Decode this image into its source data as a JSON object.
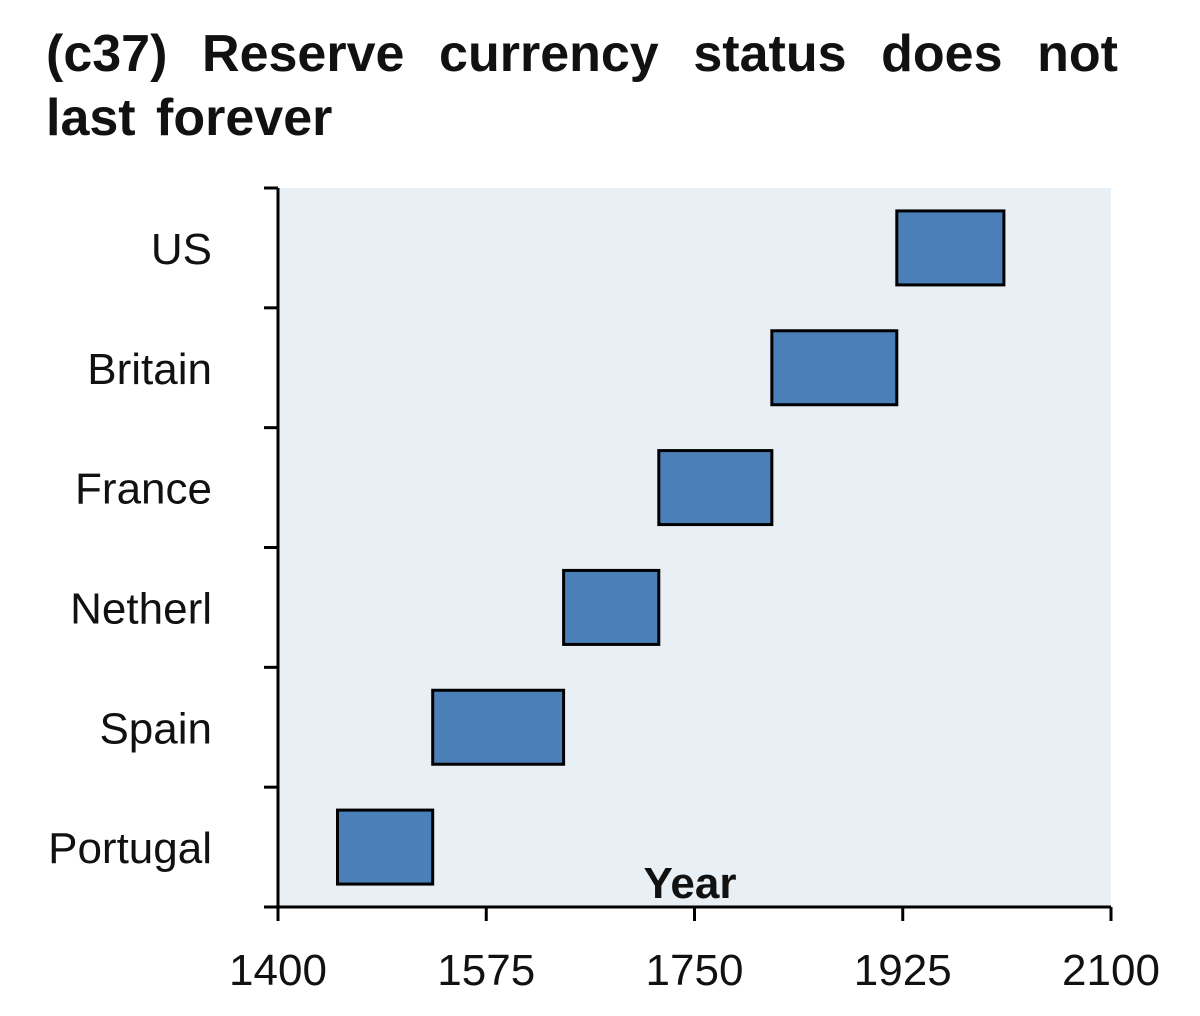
{
  "chart_data": {
    "type": "bar",
    "orientation": "horizontal-range",
    "title": "(c37) Reserve currency status does not last forever",
    "xlabel": "Year",
    "ylabel": "",
    "xlim": [
      1400,
      2100
    ],
    "xticks": [
      "1400",
      "1575",
      "1750",
      "1925",
      "2100"
    ],
    "categories": [
      "Portugal",
      "Spain",
      "Netherl",
      "France",
      "Britain",
      "US"
    ],
    "ranges": [
      [
        1450,
        1530
      ],
      [
        1530,
        1640
      ],
      [
        1640,
        1720
      ],
      [
        1720,
        1815
      ],
      [
        1815,
        1920
      ],
      [
        1920,
        2010
      ]
    ],
    "grid": false,
    "legend": "none",
    "colors": {
      "bar": "#4a7fb8",
      "plot_background": "#e9f0f5",
      "bar_border": "#000000"
    }
  }
}
